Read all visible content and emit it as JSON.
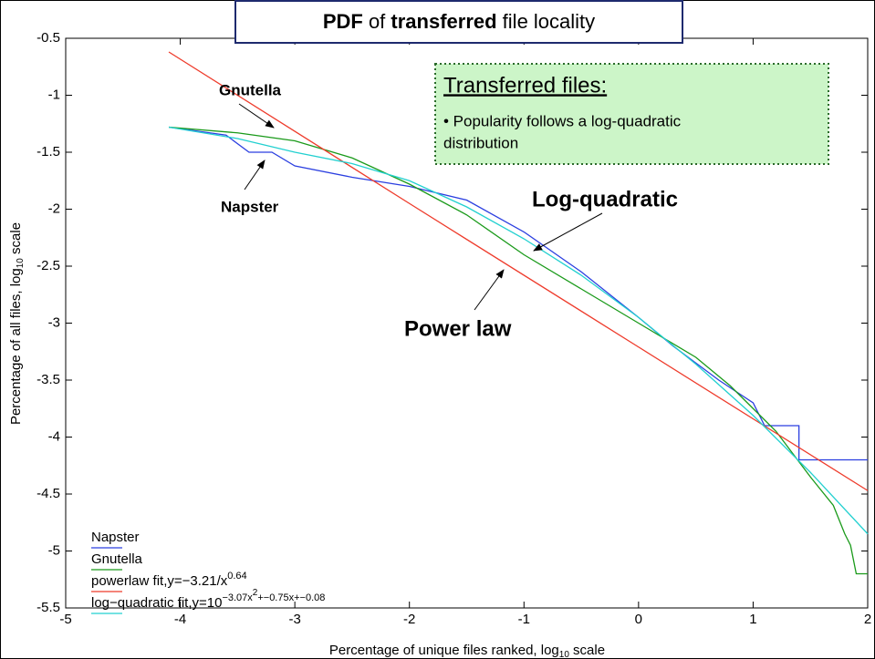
{
  "chart_data": {
    "type": "line",
    "title": [
      "PDF",
      " of ",
      "transferred",
      " file locality"
    ],
    "xlabel": [
      "Percentage of unique files ranked, log",
      "10",
      " scale"
    ],
    "ylabel": [
      "Percentage of all files, log",
      "10",
      " scale"
    ],
    "xlim": [
      -5,
      2
    ],
    "xticks": [
      -5,
      -4,
      -3,
      -2,
      -1,
      0,
      1,
      2
    ],
    "ylim": [
      -5.5,
      -0.5
    ],
    "yticks": [
      -5.5,
      -5,
      -4.5,
      -4,
      -3.5,
      -3,
      -2.5,
      -2,
      -1.5,
      -1,
      -0.5
    ],
    "grid": false,
    "legend": "lower left",
    "series": [
      {
        "name": [
          [
            "Napster",
            0
          ]
        ],
        "color": "#2b3fe0",
        "x": [
          -4.1,
          -3.6,
          -3.4,
          -3.2,
          -3.0,
          -2.5,
          -2,
          -1.5,
          -1,
          -0.5,
          0,
          0.3,
          0.5,
          0.7,
          0.85,
          1.0,
          1.1,
          1.4,
          1.4,
          2
        ],
        "values": [
          -1.28,
          -1.35,
          -1.5,
          -1.5,
          -1.62,
          -1.72,
          -1.8,
          -1.92,
          -2.2,
          -2.55,
          -2.95,
          -3.2,
          -3.35,
          -3.5,
          -3.6,
          -3.7,
          -3.9,
          -3.9,
          -4.2,
          -4.2
        ]
      },
      {
        "name": [
          [
            "Gnutella",
            0
          ]
        ],
        "color": "#1a9a1a",
        "x": [
          -4.1,
          -3.5,
          -3,
          -2.5,
          -2,
          -1.5,
          -1,
          -0.5,
          0,
          0.5,
          0.8,
          1.0,
          1.2,
          1.5,
          1.7,
          1.8,
          1.85,
          1.9,
          2
        ],
        "values": [
          -1.28,
          -1.33,
          -1.4,
          -1.55,
          -1.78,
          -2.05,
          -2.4,
          -2.7,
          -3.0,
          -3.3,
          -3.55,
          -3.75,
          -3.95,
          -4.35,
          -4.6,
          -4.85,
          -4.95,
          -5.2,
          -5.2
        ]
      },
      {
        "name": [
          [
            "powerlaw fit,y=−3.21/x",
            0
          ],
          [
            "0.64",
            1
          ]
        ],
        "color": "#ee3b2b",
        "x": [
          -4.1,
          -2,
          0,
          2
        ],
        "values": [
          -0.62,
          -1.95,
          -3.21,
          -4.47
        ]
      },
      {
        "name": [
          [
            "log−quadratic fit,y=10",
            0
          ],
          [
            "−3.07x",
            1
          ],
          [
            "2",
            2
          ],
          [
            "+−0.75x+−0.08",
            1
          ]
        ],
        "color": "#22d0d0",
        "x": [
          -4.1,
          -3.5,
          -3,
          -2.5,
          -2,
          -1.5,
          -1,
          -0.5,
          0,
          0.5,
          1,
          1.5,
          2
        ],
        "values": [
          -1.28,
          -1.38,
          -1.5,
          -1.6,
          -1.75,
          -1.98,
          -2.26,
          -2.58,
          -2.95,
          -3.36,
          -3.81,
          -4.31,
          -4.85
        ]
      }
    ],
    "annotations": [
      "Gnutella",
      "Napster",
      "Log-quadratic",
      "Power law"
    ],
    "note": {
      "heading": "Transferred files:",
      "lines": [
        "• Popularity follows a log-quadratic",
        "distribution"
      ]
    }
  }
}
